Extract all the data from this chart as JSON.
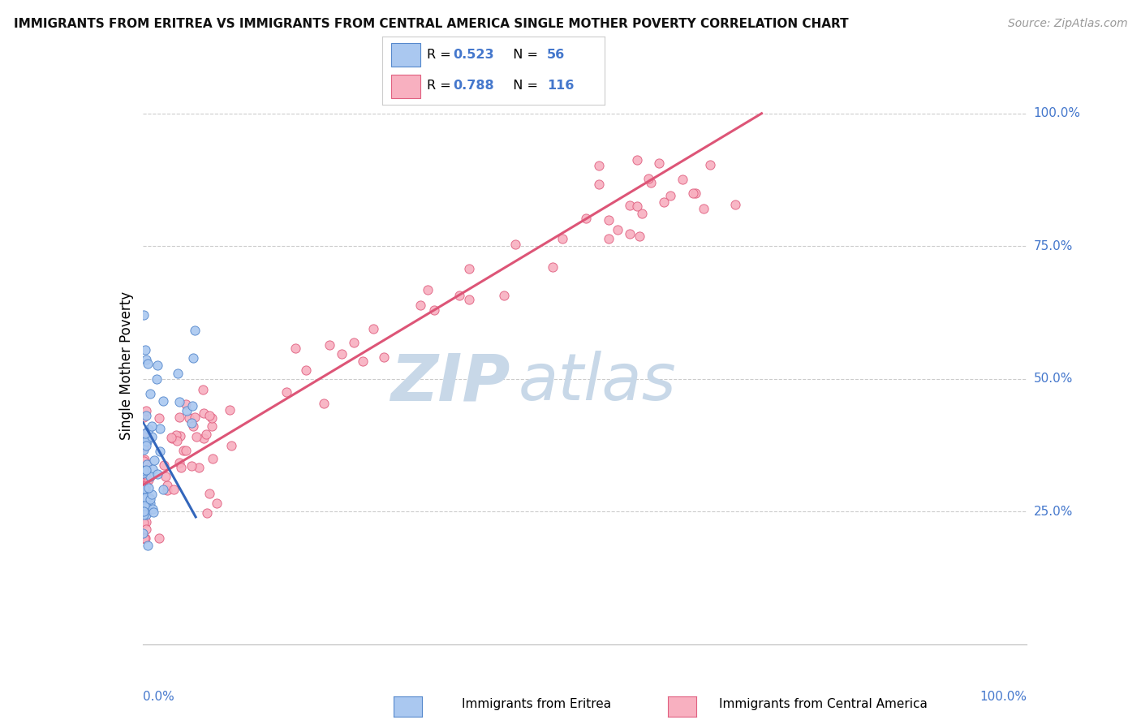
{
  "title": "IMMIGRANTS FROM ERITREA VS IMMIGRANTS FROM CENTRAL AMERICA SINGLE MOTHER POVERTY CORRELATION CHART",
  "source": "Source: ZipAtlas.com",
  "ylabel": "Single Mother Poverty",
  "r1": 0.523,
  "n1": 56,
  "r2": 0.788,
  "n2": 116,
  "color_eritrea_fill": "#aac8f0",
  "color_eritrea_edge": "#5588cc",
  "color_ca_fill": "#f8b0c0",
  "color_ca_edge": "#e06080",
  "color_eritrea_line": "#3366bb",
  "color_ca_line": "#dd5577",
  "color_blue_text": "#4477cc",
  "legend_label_1": "Immigrants from Eritrea",
  "legend_label_2": "Immigrants from Central America",
  "background_color": "#ffffff",
  "grid_color": "#cccccc",
  "title_color": "#111111",
  "axis_label_color": "#4477cc",
  "watermark_zip_color": "#c8d8e8",
  "watermark_atlas_color": "#c8d8e8",
  "xlim": [
    0.0,
    1.0
  ],
  "ylim": [
    0.0,
    1.0
  ],
  "ytick_vals": [
    0.25,
    0.5,
    0.75,
    1.0
  ],
  "ytick_labels": [
    "25.0%",
    "50.0%",
    "75.0%",
    "100.0%"
  ]
}
